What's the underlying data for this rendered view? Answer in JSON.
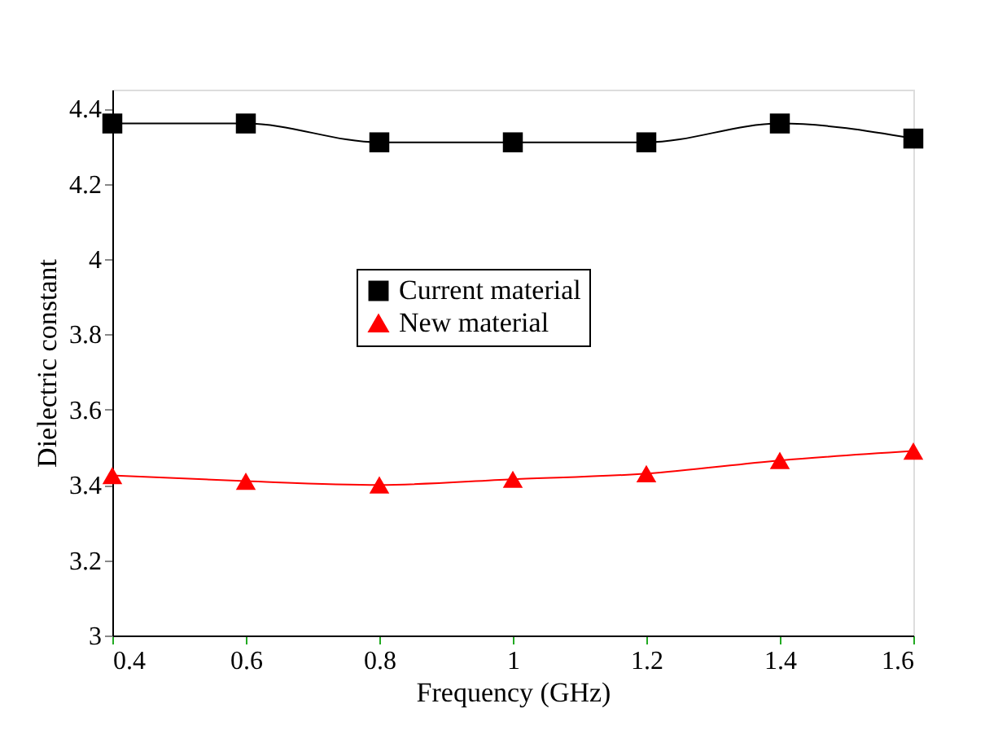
{
  "chart_data": {
    "type": "line",
    "xlabel": "Frequency (GHz)",
    "ylabel": "Dielectric constant",
    "x": [
      0.4,
      0.6,
      0.8,
      1.0,
      1.2,
      1.4,
      1.6
    ],
    "series": [
      {
        "name": "Current material",
        "color": "#000000",
        "marker": "square",
        "values": [
          4.36,
          4.36,
          4.31,
          4.31,
          4.31,
          4.36,
          4.32
        ]
      },
      {
        "name": "New material",
        "color": "#ff0000",
        "marker": "triangle",
        "values": [
          3.425,
          3.41,
          3.4,
          3.415,
          3.43,
          3.465,
          3.49
        ]
      }
    ],
    "xlim": [
      0.4,
      1.6
    ],
    "xticks": [
      0.4,
      0.6,
      0.8,
      1,
      1.2,
      1.4,
      1.6
    ],
    "ylim": [
      3,
      4.45
    ],
    "yticks": [
      3,
      3.2,
      3.4,
      3.6,
      3.8,
      4,
      4.2,
      4.4
    ],
    "grid": false,
    "legend": "center",
    "line_style": "solid"
  }
}
